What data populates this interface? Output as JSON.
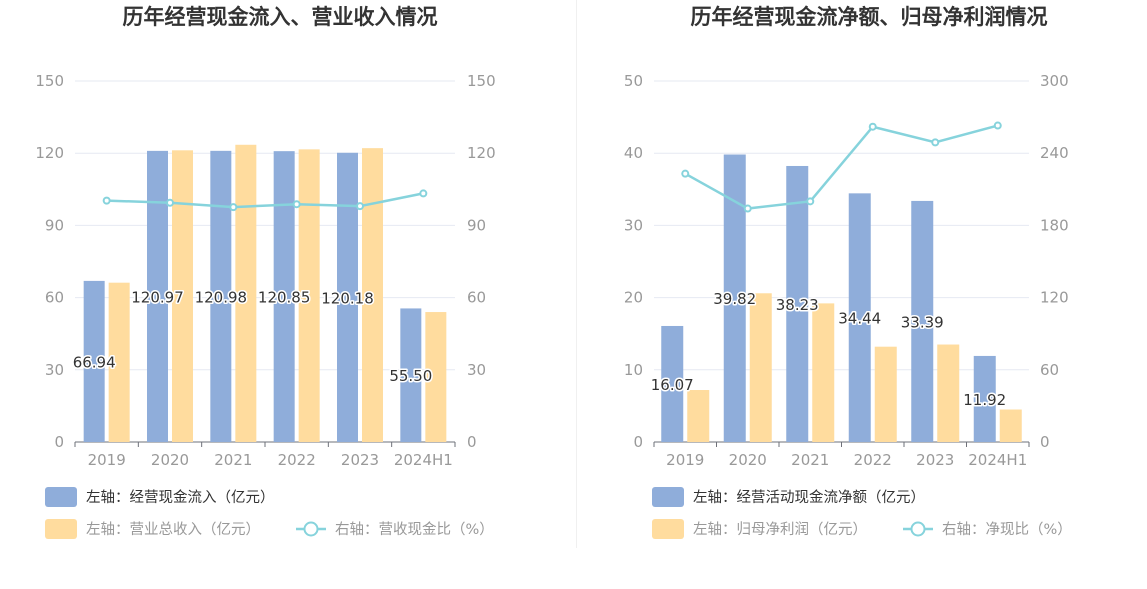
{
  "chart_data": [
    {
      "type": "bar",
      "title": "历年经营现金流入、营业收入情况",
      "categories": [
        "2019",
        "2020",
        "2021",
        "2022",
        "2023",
        "2024H1"
      ],
      "y_left": {
        "ticks": [
          "0",
          "30",
          "60",
          "90",
          "120",
          "150"
        ],
        "lim": [
          0,
          150
        ]
      },
      "y_right": {
        "ticks": [
          "0",
          "30",
          "60",
          "90",
          "120",
          "150"
        ],
        "lim": [
          0,
          150
        ]
      },
      "grid": true,
      "legend_position": "bottom-left",
      "series": [
        {
          "name": "左轴：经营现金流入（亿元）",
          "type": "bar",
          "axis": "left",
          "color": "#8fadda",
          "values": [
            66.94,
            120.97,
            120.98,
            120.85,
            120.18,
            55.5
          ],
          "labels": [
            "66.94",
            "120.97",
            "120.98",
            "120.85",
            "120.18",
            "55.50"
          ]
        },
        {
          "name": "左轴：营业总收入（亿元）",
          "type": "bar",
          "axis": "left",
          "color": "#ffdc9e",
          "values": [
            66.2,
            121.2,
            123.5,
            121.6,
            122.1,
            54.0
          ]
        },
        {
          "name": "右轴：营收现金比（%）",
          "type": "line",
          "axis": "right",
          "color": "#86d3dc",
          "values": [
            100.3,
            99.4,
            97.6,
            98.8,
            98.0,
            103.3
          ]
        }
      ]
    },
    {
      "type": "bar",
      "title": "历年经营现金流净额、归母净利润情况",
      "categories": [
        "2019",
        "2020",
        "2021",
        "2022",
        "2023",
        "2024H1"
      ],
      "y_left": {
        "ticks": [
          "0",
          "10",
          "20",
          "30",
          "40",
          "50"
        ],
        "lim": [
          0,
          50
        ]
      },
      "y_right": {
        "ticks": [
          "0",
          "60",
          "120",
          "180",
          "240",
          "300"
        ],
        "lim": [
          0,
          300
        ]
      },
      "grid": true,
      "legend_position": "bottom-left",
      "series": [
        {
          "name": "左轴：经营活动现金流净额（亿元）",
          "type": "bar",
          "axis": "left",
          "color": "#8fadda",
          "values": [
            16.07,
            39.82,
            38.23,
            34.44,
            33.39,
            11.92
          ],
          "labels": [
            "16.07",
            "39.82",
            "38.23",
            "34.44",
            "33.39",
            "11.92"
          ]
        },
        {
          "name": "左轴：归母净利润（亿元）",
          "type": "bar",
          "axis": "left",
          "color": "#ffdc9e",
          "values": [
            7.2,
            20.6,
            19.2,
            13.2,
            13.5,
            4.5
          ]
        },
        {
          "name": "右轴：净现比（%）",
          "type": "line",
          "axis": "right",
          "color": "#86d3dc",
          "values": [
            223,
            194,
            200,
            262,
            249,
            263
          ]
        }
      ]
    }
  ]
}
